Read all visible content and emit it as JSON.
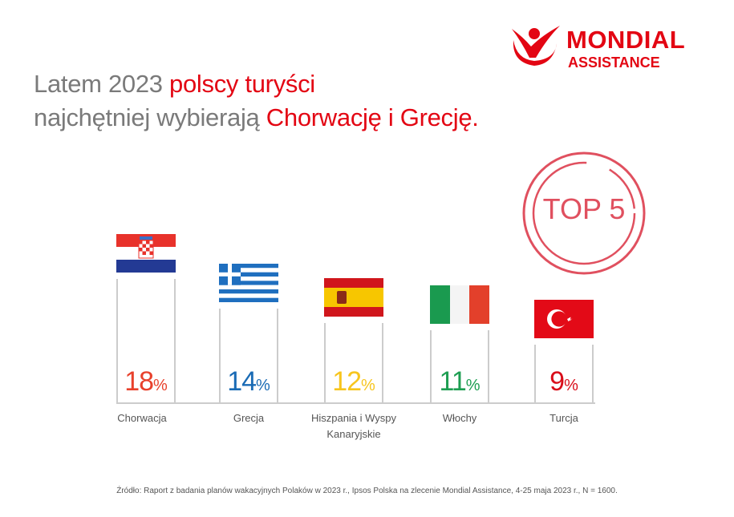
{
  "title": {
    "line1_gray": "Latem 2023 ",
    "line1_red": "polscy turyści",
    "line2_gray": "najchętniej wybierają ",
    "line2_red": "Chorwację i Grecję."
  },
  "logo": {
    "word1": "MONDIAL",
    "word2": "ASSISTANCE",
    "color": "#e30613"
  },
  "badge": {
    "text": "TOP 5",
    "color": "#e0505f"
  },
  "chart_data": {
    "type": "bar",
    "categories": [
      "Chorwacja",
      "Grecja",
      "Hiszpania i Wyspy Kanaryjskie",
      "Włochy",
      "Turcja"
    ],
    "values": [
      18,
      14,
      12,
      11,
      9
    ],
    "unit": "%",
    "flags": [
      "croatia-flag",
      "greece-flag",
      "spain-flag",
      "italy-flag",
      "turkey-flag"
    ],
    "value_colors": [
      "#e8412c",
      "#1a6bb5",
      "#f7c51d",
      "#1e9e52",
      "#d90e1a"
    ],
    "grid": false,
    "ylabel": "",
    "xlabel": ""
  },
  "source": "Źródło: Raport z badania planów wakacyjnych Polaków w 2023 r., Ipsos Polska na zlecenie Mondial Assistance, 4-25 maja 2023 r., N = 1600."
}
